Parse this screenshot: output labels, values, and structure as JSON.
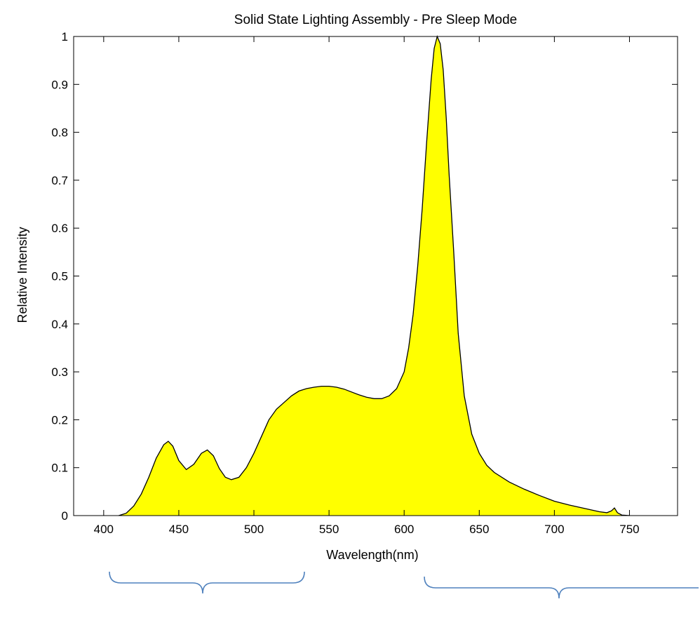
{
  "chart_data": {
    "type": "area",
    "title": "Solid State Lighting Assembly - Pre Sleep Mode",
    "xlabel": "Wavelength(nm)",
    "ylabel": "Relative Intensity",
    "xlim": [
      380,
      782
    ],
    "ylim": [
      0,
      1
    ],
    "xticks": [
      400,
      450,
      500,
      550,
      600,
      650,
      700,
      750
    ],
    "yticks": [
      0,
      0.1,
      0.2,
      0.3,
      0.4,
      0.5,
      0.6,
      0.7,
      0.8,
      0.9,
      1
    ],
    "ytick_labels": [
      "0",
      "0.1",
      "0.2",
      "0.3",
      "0.4",
      "0.5",
      "0.6",
      "0.7",
      "0.8",
      "0.9",
      "1"
    ],
    "grid": false,
    "fill_color": "#ffff00",
    "line_color": "#000000",
    "x": [
      410,
      415,
      420,
      425,
      430,
      435,
      440,
      443,
      446,
      450,
      455,
      460,
      465,
      469,
      473,
      477,
      481,
      485,
      490,
      495,
      500,
      505,
      510,
      515,
      520,
      525,
      530,
      535,
      540,
      545,
      550,
      555,
      560,
      565,
      570,
      575,
      580,
      585,
      590,
      595,
      600,
      603,
      606,
      609,
      612,
      615,
      618,
      620,
      622,
      624,
      626,
      628,
      630,
      633,
      636,
      640,
      645,
      650,
      655,
      660,
      670,
      680,
      690,
      700,
      710,
      720,
      730,
      735,
      738,
      740,
      742,
      745,
      750
    ],
    "y": [
      0.0,
      0.005,
      0.02,
      0.045,
      0.08,
      0.12,
      0.148,
      0.155,
      0.145,
      0.115,
      0.096,
      0.107,
      0.13,
      0.137,
      0.125,
      0.098,
      0.08,
      0.075,
      0.08,
      0.1,
      0.13,
      0.165,
      0.2,
      0.222,
      0.236,
      0.25,
      0.26,
      0.265,
      0.268,
      0.27,
      0.27,
      0.268,
      0.264,
      0.258,
      0.252,
      0.247,
      0.244,
      0.244,
      0.25,
      0.265,
      0.3,
      0.35,
      0.42,
      0.52,
      0.64,
      0.78,
      0.91,
      0.975,
      1.0,
      0.985,
      0.93,
      0.83,
      0.71,
      0.55,
      0.38,
      0.25,
      0.17,
      0.13,
      0.105,
      0.09,
      0.07,
      0.055,
      0.042,
      0.03,
      0.022,
      0.015,
      0.008,
      0.006,
      0.01,
      0.016,
      0.006,
      0.001,
      0.0
    ]
  }
}
